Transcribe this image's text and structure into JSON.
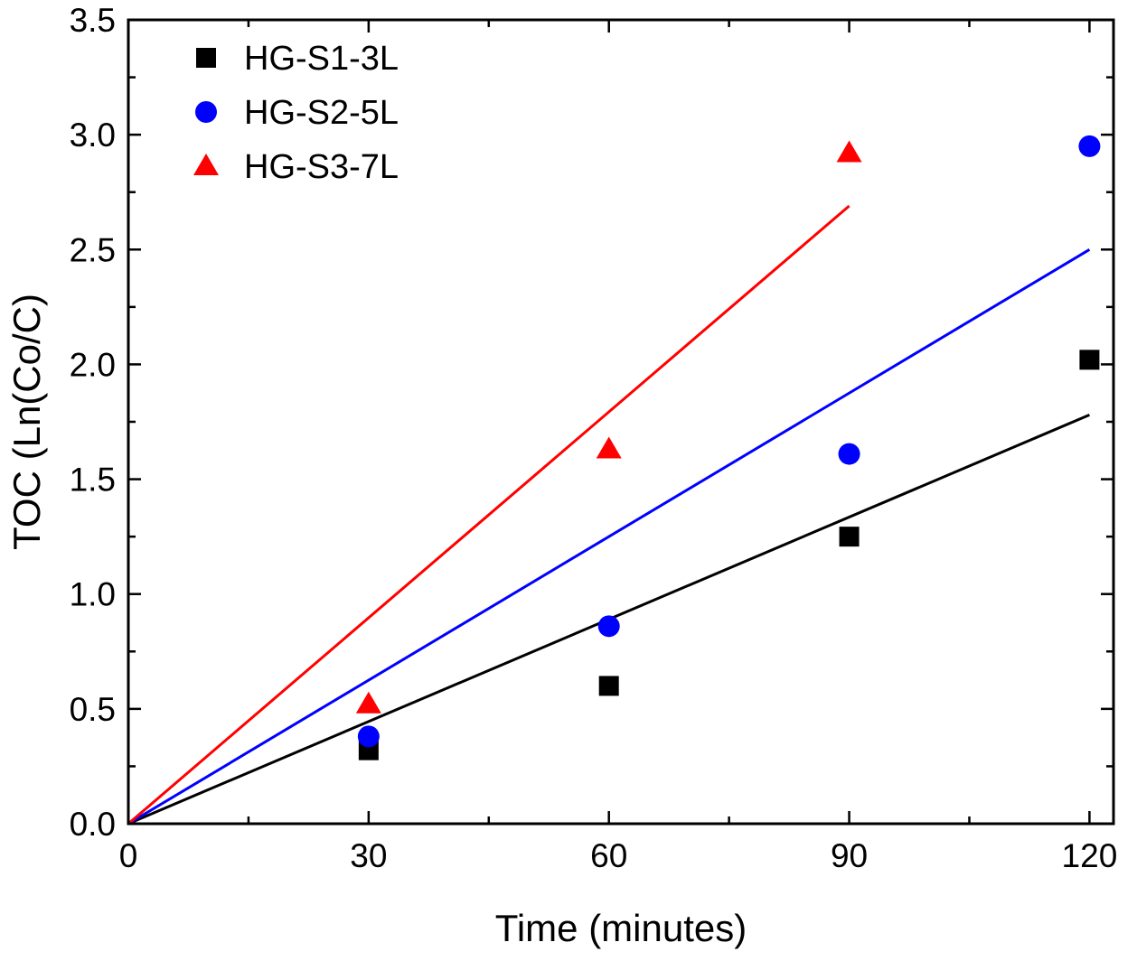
{
  "chart_data": {
    "type": "scatter",
    "title": "",
    "xlabel": "Time (minutes)",
    "ylabel": "TOC (Ln(Co/C)",
    "xlim": [
      0,
      123
    ],
    "ylim": [
      0,
      3.5
    ],
    "grid": false,
    "legend_position": "top-left",
    "xticks": [
      0,
      30,
      60,
      90,
      120
    ],
    "xtick_labels": [
      "0",
      "30",
      "60",
      "90",
      "120"
    ],
    "yticks": [
      0.0,
      0.5,
      1.0,
      1.5,
      2.0,
      2.5,
      3.0,
      3.5
    ],
    "ytick_labels": [
      "0.0",
      "0.5",
      "1.0",
      "1.5",
      "2.0",
      "2.5",
      "3.0",
      "3.5"
    ],
    "xminor_step": 15,
    "yminor_step": 0.25,
    "series": [
      {
        "name": "HG-S1-3L",
        "color": "#000000",
        "marker": "square",
        "points": [
          [
            30,
            0.32
          ],
          [
            60,
            0.6
          ],
          [
            90,
            1.25
          ],
          [
            120,
            2.02
          ]
        ],
        "fit_line": {
          "x_start": 0,
          "y_start": 0.0,
          "x_end": 120,
          "y_end": 1.78,
          "slope": 0.0148
        }
      },
      {
        "name": "HG-S2-5L",
        "color": "#0000ff",
        "marker": "circle",
        "points": [
          [
            30,
            0.38
          ],
          [
            60,
            0.86
          ],
          [
            90,
            1.61
          ],
          [
            120,
            2.95
          ]
        ],
        "fit_line": {
          "x_start": 0,
          "y_start": 0.0,
          "x_end": 120,
          "y_end": 2.5,
          "slope": 0.0208
        }
      },
      {
        "name": "HG-S3-7L",
        "color": "#ff0000",
        "marker": "triangle",
        "points": [
          [
            30,
            0.52
          ],
          [
            60,
            1.63
          ],
          [
            90,
            2.92
          ]
        ],
        "fit_line": {
          "x_start": 0,
          "y_start": 0.0,
          "x_end": 90,
          "y_end": 2.69,
          "slope": 0.0299
        }
      }
    ]
  }
}
